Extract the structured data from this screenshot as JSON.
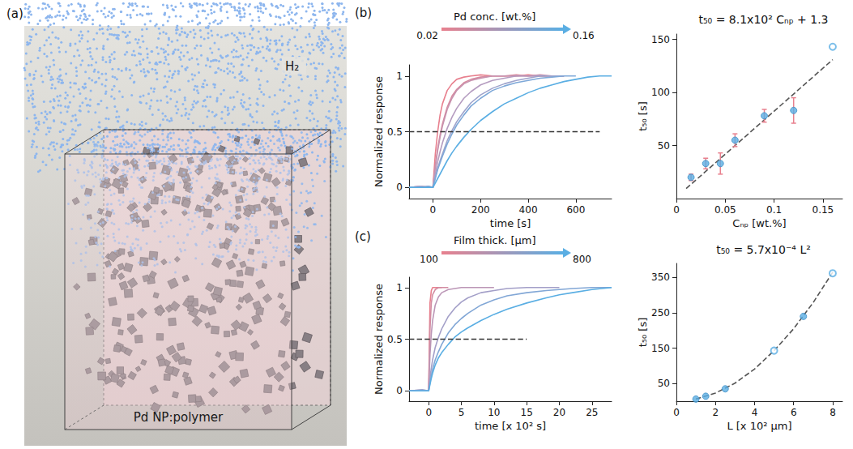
{
  "illustration": {
    "label": "(a)",
    "gas_label": "H₂",
    "material_label": "Pd NP:polymer"
  },
  "chart_data": [
    {
      "panel": "(b)",
      "type": "line",
      "color_scale": {
        "title": "Pd conc. [wt.%]",
        "range": [
          0.02,
          0.16
        ],
        "colors": [
          "#e8808e",
          "#5aaee3"
        ]
      },
      "xlabel": "time [s]",
      "ylabel": "Normalized response",
      "x": [
        -100,
        -50,
        -20,
        0,
        10,
        20,
        30,
        40,
        60,
        80,
        100,
        130,
        160,
        200,
        250,
        300,
        350,
        400,
        450,
        500,
        550,
        600,
        650,
        700,
        750
      ],
      "xlim": [
        -100,
        750
      ],
      "xticks": [
        0,
        200,
        400,
        600
      ],
      "ylim": [
        -0.1,
        1.1
      ],
      "yticks": [
        0,
        0.5,
        1
      ],
      "grid": false,
      "series": [
        {
          "color": "#e8808e",
          "line_style": "solid",
          "values": [
            0,
            0.01,
            0,
            0,
            0.3,
            0.5,
            0.65,
            0.75,
            0.87,
            0.93,
            0.97,
            0.99,
            1,
            1.01,
            1,
            1,
            1,
            1.01,
            1,
            1,
            1,
            null,
            null,
            null,
            null
          ]
        },
        {
          "color": "#d88a9e",
          "line_style": "solid",
          "values": [
            0,
            0,
            0.01,
            0,
            0.2,
            0.35,
            0.47,
            0.57,
            0.72,
            0.82,
            0.88,
            0.94,
            0.97,
            0.99,
            1,
            1,
            1.01,
            1,
            1,
            1,
            1,
            null,
            null,
            null,
            null
          ]
        },
        {
          "color": "#c793af",
          "line_style": "solid",
          "values": [
            0,
            0.01,
            0,
            0,
            0.18,
            0.33,
            0.45,
            0.55,
            0.7,
            0.8,
            0.87,
            0.93,
            0.96,
            0.98,
            1,
            1,
            1,
            1,
            1.01,
            1,
            1,
            null,
            null,
            null,
            null
          ]
        },
        {
          "color": "#b59cc0",
          "line_style": "solid",
          "values": [
            0,
            0,
            0,
            0,
            0.12,
            0.23,
            0.32,
            0.4,
            0.53,
            0.63,
            0.71,
            0.8,
            0.86,
            0.92,
            0.96,
            0.98,
            1,
            1,
            1,
            1,
            1,
            null,
            null,
            null,
            null
          ]
        },
        {
          "color": "#9ea3cc",
          "line_style": "solid",
          "values": [
            0,
            0.01,
            0,
            0,
            0.09,
            0.17,
            0.24,
            0.3,
            0.42,
            0.51,
            0.59,
            0.68,
            0.76,
            0.83,
            0.89,
            0.93,
            0.96,
            0.98,
            1,
            1,
            1,
            null,
            null,
            null,
            null
          ]
        },
        {
          "color": "#7ea8d8",
          "line_style": "solid",
          "values": [
            0,
            0,
            0.01,
            0,
            0.08,
            0.16,
            0.22,
            0.28,
            0.39,
            0.48,
            0.56,
            0.65,
            0.73,
            0.8,
            0.87,
            0.91,
            0.94,
            0.96,
            0.98,
            0.99,
            1,
            1,
            null,
            null,
            null
          ]
        },
        {
          "color": "#5aaee3",
          "line_style": "solid",
          "values": [
            0,
            0,
            0,
            0,
            0.04,
            0.08,
            0.12,
            0.16,
            0.24,
            0.31,
            0.37,
            0.45,
            0.52,
            0.6,
            0.68,
            0.75,
            0.8,
            0.85,
            0.89,
            0.92,
            0.95,
            0.97,
            0.99,
            1,
            1
          ]
        },
        {
          "color": "#333333",
          "line_style": "dashed",
          "x": [
            -100,
            700
          ],
          "values": [
            0.5,
            0.5
          ]
        }
      ]
    },
    {
      "type": "scatter",
      "title": "t₅₀ = 8.1x10² Cₙₚ + 1.3",
      "xlabel": "Cₙₚ [wt.%]",
      "ylabel": "t₅₀ [s]",
      "xlim": [
        0,
        0.17
      ],
      "xticks": [
        0,
        0.05,
        0.1,
        0.15
      ],
      "ylim": [
        0,
        155
      ],
      "yticks": [
        50,
        100,
        150
      ],
      "grid": false,
      "series": [
        {
          "type": "line",
          "line_style": "dashed",
          "color": "#555555",
          "x": [
            0.01,
            0.16
          ],
          "values": [
            9.4,
            130.9
          ]
        },
        {
          "type": "scatter",
          "marker": "circle",
          "color": "#5aaee3",
          "x": [
            0.015,
            0.03,
            0.045,
            0.06,
            0.09,
            0.12
          ],
          "values": [
            20,
            33,
            33,
            55,
            78,
            83
          ],
          "errors": [
            3,
            5,
            10,
            6,
            6,
            12
          ]
        },
        {
          "type": "scatter",
          "marker": "open_circle",
          "color": "#5aaee3",
          "x": [
            0.16
          ],
          "values": [
            143
          ]
        }
      ]
    },
    {
      "panel": "(c)",
      "type": "line",
      "color_scale": {
        "title": "Film thick. [μm]",
        "range": [
          100,
          800
        ],
        "colors": [
          "#e8808e",
          "#5aaee3"
        ]
      },
      "xlabel": "time [x 10² s]",
      "ylabel": "Normalized response",
      "x": [
        -3,
        -1,
        0,
        0.2,
        0.4,
        0.6,
        1,
        1.5,
        2,
        3,
        4,
        5,
        6,
        8,
        10,
        12,
        15,
        18,
        20,
        22,
        25,
        28
      ],
      "xlim": [
        -3,
        28
      ],
      "xticks": [
        0,
        5,
        10,
        15,
        20,
        25
      ],
      "ylim": [
        -0.1,
        1.1
      ],
      "yticks": [
        0,
        0.5,
        1
      ],
      "grid": false,
      "series": [
        {
          "color": "#e8808e",
          "line_style": "solid",
          "values": [
            0,
            0,
            0,
            0.85,
            0.97,
            1,
            1,
            1,
            1,
            null,
            null,
            null,
            null,
            null,
            null,
            null,
            null,
            null,
            null,
            null,
            null,
            null
          ]
        },
        {
          "color": "#d28ca2",
          "line_style": "solid",
          "values": [
            0,
            0.01,
            0,
            0.6,
            0.85,
            0.93,
            0.98,
            1,
            1,
            1,
            null,
            null,
            null,
            null,
            null,
            null,
            null,
            null,
            null,
            null,
            null,
            null
          ]
        },
        {
          "color": "#bb96b6",
          "line_style": "solid",
          "values": [
            0,
            0,
            0,
            0.35,
            0.55,
            0.68,
            0.83,
            0.91,
            0.95,
            0.98,
            0.99,
            1,
            1,
            1,
            1,
            null,
            null,
            null,
            null,
            null,
            null,
            null
          ]
        },
        {
          "color": "#a39fc8",
          "line_style": "solid",
          "values": [
            0,
            0,
            0,
            0.12,
            0.22,
            0.3,
            0.42,
            0.52,
            0.6,
            0.72,
            0.8,
            0.86,
            0.9,
            0.95,
            0.97,
            0.99,
            1,
            1,
            1,
            null,
            null,
            null
          ]
        },
        {
          "color": "#82a7d6",
          "line_style": "solid",
          "values": [
            0,
            0.01,
            0,
            0.08,
            0.15,
            0.21,
            0.3,
            0.38,
            0.45,
            0.56,
            0.64,
            0.7,
            0.75,
            0.83,
            0.88,
            0.92,
            0.95,
            0.97,
            0.98,
            0.99,
            1,
            1
          ]
        },
        {
          "color": "#5aaee3",
          "line_style": "solid",
          "values": [
            0,
            0,
            0,
            0.06,
            0.12,
            0.17,
            0.25,
            0.32,
            0.37,
            0.45,
            0.52,
            0.57,
            0.61,
            0.68,
            0.74,
            0.79,
            0.85,
            0.9,
            0.93,
            0.95,
            0.98,
            1
          ]
        },
        {
          "color": "#333333",
          "line_style": "dashed",
          "x": [
            -3,
            15
          ],
          "values": [
            0.5,
            0.5
          ]
        }
      ]
    },
    {
      "type": "scatter",
      "title": "t₅₀ = 5.7x10⁻⁴ L²",
      "xlabel": "L [x 10² μm]",
      "ylabel": "t₅₀ [s]",
      "xlim": [
        0,
        8.5
      ],
      "xticks": [
        0,
        2,
        4,
        6,
        8
      ],
      "ylim": [
        0,
        390
      ],
      "yticks": [
        50,
        150,
        250,
        350
      ],
      "grid": false,
      "series": [
        {
          "type": "line",
          "line_style": "dashed",
          "color": "#555555",
          "x": [
            1,
            2,
            3,
            4,
            5,
            6,
            7,
            8
          ],
          "values": [
            6,
            23,
            51,
            91,
            143,
            205,
            279,
            365
          ]
        },
        {
          "type": "scatter",
          "marker": "circle",
          "color": "#5aaee3",
          "x": [
            1,
            1.5,
            2.5,
            6.5
          ],
          "values": [
            6,
            14,
            35,
            240
          ]
        },
        {
          "type": "scatter",
          "marker": "open_circle",
          "color": "#5aaee3",
          "x": [
            5,
            8
          ],
          "values": [
            143,
            362
          ]
        }
      ]
    }
  ]
}
